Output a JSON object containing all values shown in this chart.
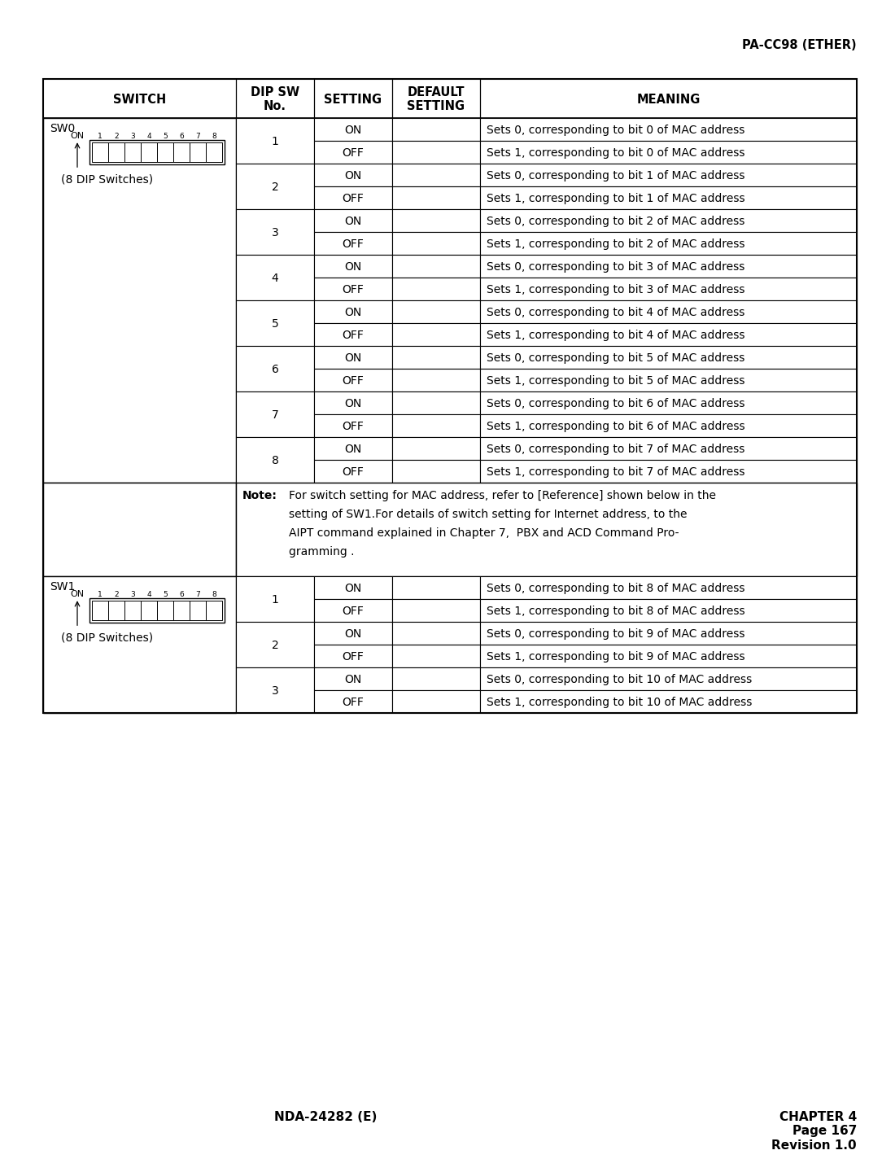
{
  "title_right": "PA-CC98 (ETHER)",
  "footer_left": "NDA-24282 (E)",
  "footer_right_lines": [
    "CHAPTER 4",
    "Page 167",
    "Revision 1.0"
  ],
  "header_cols": [
    "SWITCH",
    "DIP SW\nNo.",
    "SETTING",
    "DEFAULT\nSETTING",
    "MEANING"
  ],
  "sw0_label": "SW0",
  "sw0_dip_label": "(8 DIP Switches)",
  "sw1_label": "SW1",
  "sw1_dip_label": "(8 DIP Switches)",
  "note_label": "Note:",
  "note_lines": [
    "For switch setting for MAC address, refer to [Reference] shown below in the",
    "setting of SW1.For details of switch setting for Internet address, to the",
    "AIPT command explained in Chapter 7,  PBX and ACD Command Pro-",
    "gramming ."
  ],
  "sw0_rows": [
    [
      "1",
      "ON",
      "",
      "Sets 0, corresponding to bit 0 of MAC address"
    ],
    [
      "1",
      "OFF",
      "",
      "Sets 1, corresponding to bit 0 of MAC address"
    ],
    [
      "2",
      "ON",
      "",
      "Sets 0, corresponding to bit 1 of MAC address"
    ],
    [
      "2",
      "OFF",
      "",
      "Sets 1, corresponding to bit 1 of MAC address"
    ],
    [
      "3",
      "ON",
      "",
      "Sets 0, corresponding to bit 2 of MAC address"
    ],
    [
      "3",
      "OFF",
      "",
      "Sets 1, corresponding to bit 2 of MAC address"
    ],
    [
      "4",
      "ON",
      "",
      "Sets 0, corresponding to bit 3 of MAC address"
    ],
    [
      "4",
      "OFF",
      "",
      "Sets 1, corresponding to bit 3 of MAC address"
    ],
    [
      "5",
      "ON",
      "",
      "Sets 0, corresponding to bit 4 of MAC address"
    ],
    [
      "5",
      "OFF",
      "",
      "Sets 1, corresponding to bit 4 of MAC address"
    ],
    [
      "6",
      "ON",
      "",
      "Sets 0, corresponding to bit 5 of MAC address"
    ],
    [
      "6",
      "OFF",
      "",
      "Sets 1, corresponding to bit 5 of MAC address"
    ],
    [
      "7",
      "ON",
      "",
      "Sets 0, corresponding to bit 6 of MAC address"
    ],
    [
      "7",
      "OFF",
      "",
      "Sets 1, corresponding to bit 6 of MAC address"
    ],
    [
      "8",
      "ON",
      "",
      "Sets 0, corresponding to bit 7 of MAC address"
    ],
    [
      "8",
      "OFF",
      "",
      "Sets 1, corresponding to bit 7 of MAC address"
    ]
  ],
  "sw1_rows": [
    [
      "1",
      "ON",
      "",
      "Sets 0, corresponding to bit 8 of MAC address"
    ],
    [
      "1",
      "OFF",
      "",
      "Sets 1, corresponding to bit 8 of MAC address"
    ],
    [
      "2",
      "ON",
      "",
      "Sets 0, corresponding to bit 9 of MAC address"
    ],
    [
      "2",
      "OFF",
      "",
      "Sets 1, corresponding to bit 9 of MAC address"
    ],
    [
      "3",
      "ON",
      "",
      "Sets 0, corresponding to bit 10 of MAC address"
    ],
    [
      "3",
      "OFF",
      "",
      "Sets 1, corresponding to bit 10 of MAC address"
    ]
  ],
  "bg_color": "#ffffff",
  "border_color": "#000000"
}
